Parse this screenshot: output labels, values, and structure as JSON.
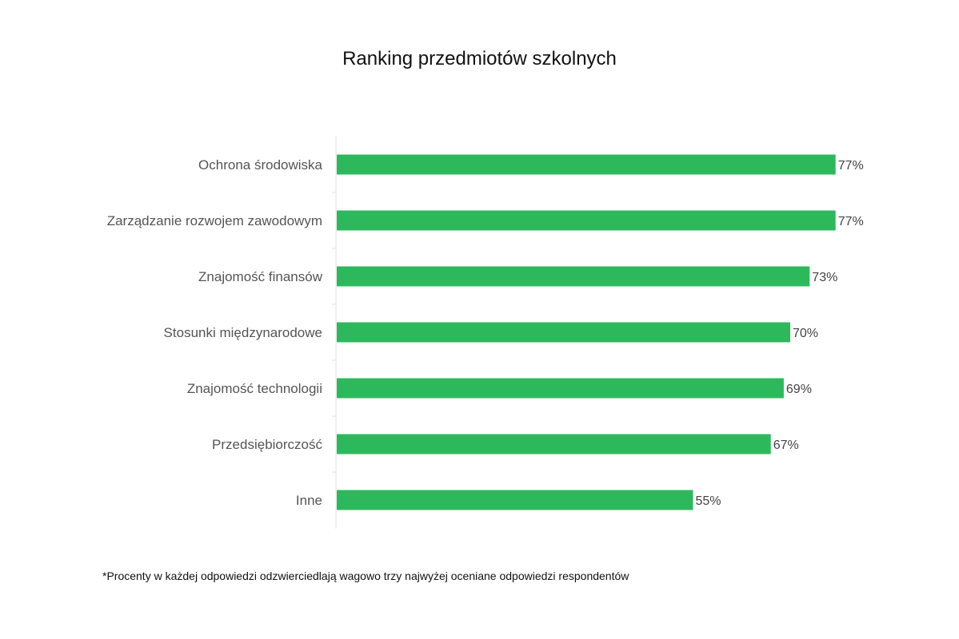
{
  "title": "Ranking przedmiotów szkolnych",
  "footnote": "*Procenty w każdej odpowiedzi odzwierciedlają wagowo trzy najwyżej oceniane odpowiedzi respondentów",
  "colors": {
    "bar": "#2eb85c",
    "axis": "#e3e3e3",
    "label": "#555555",
    "value": "#444444"
  },
  "chart_data": {
    "type": "bar",
    "orientation": "horizontal",
    "title": "Ranking przedmiotów szkolnych",
    "categories": [
      "Ochrona środowiska",
      "Zarządzanie rozwojem zawodowym",
      "Znajomość finansów",
      "Stosunki międzynarodowe",
      "Znajomość technologii",
      "Przedsiębiorczość",
      "Inne"
    ],
    "values": [
      77,
      77,
      73,
      70,
      69,
      67,
      55
    ],
    "value_labels": [
      "77%",
      "77%",
      "73%",
      "70%",
      "69%",
      "67%",
      "55%"
    ],
    "unit": "%",
    "xlim": [
      0,
      100
    ],
    "grid": false,
    "legend": "none"
  }
}
